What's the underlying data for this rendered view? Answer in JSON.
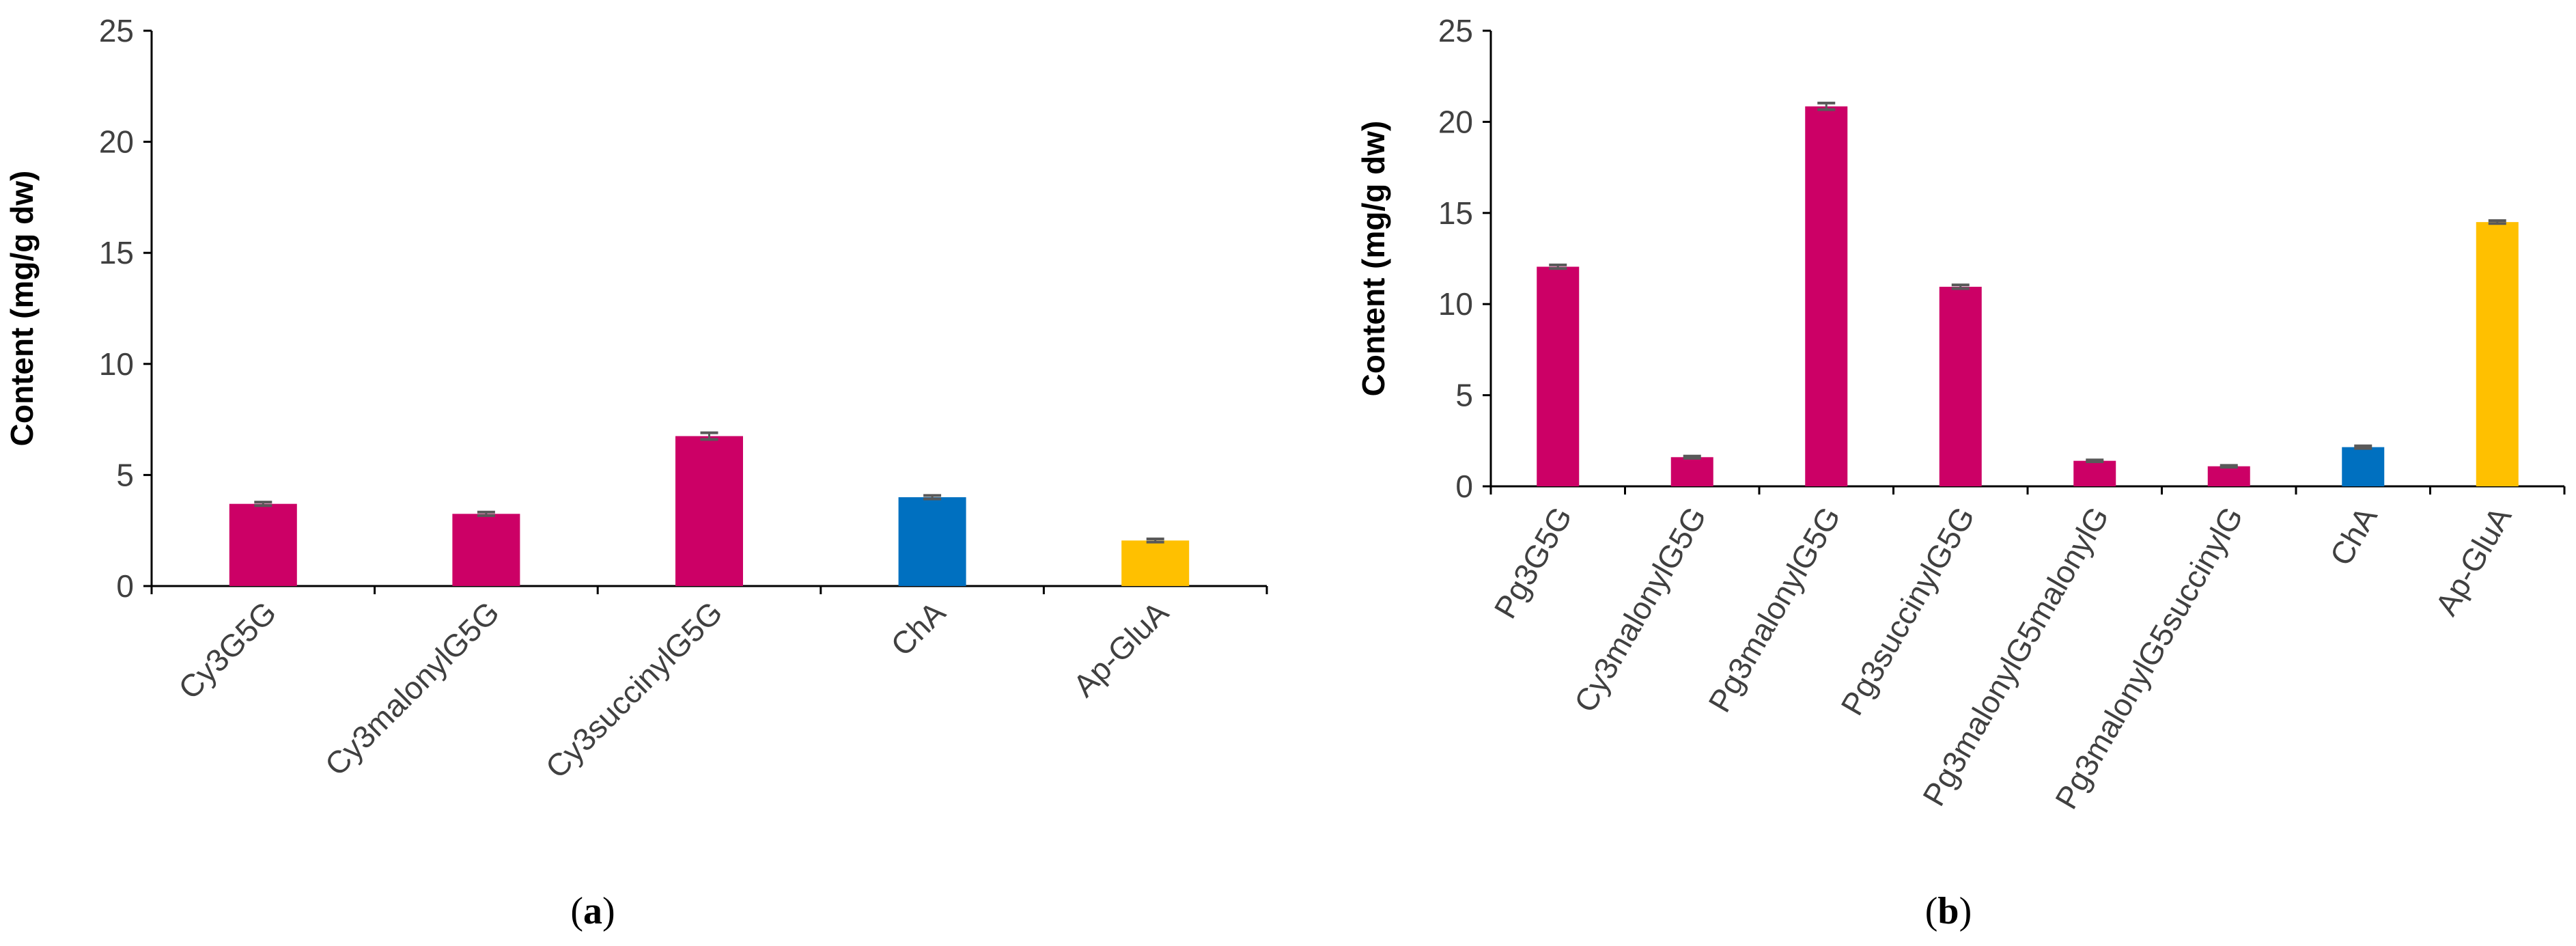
{
  "chart_data": [
    {
      "type": "bar",
      "panel": "a",
      "ylabel": "Content (mg/g dw)",
      "ylim": [
        0,
        25
      ],
      "yticks": [
        0,
        5,
        10,
        15,
        20,
        25
      ],
      "categories": [
        "Cy3G5G",
        "Cy3malonylG5G",
        "Cy3succinylG5G",
        "ChA",
        "Ap-GluA"
      ],
      "values": [
        3.7,
        3.25,
        6.75,
        4.0,
        2.05
      ],
      "errors": [
        0.08,
        0.08,
        0.15,
        0.08,
        0.07
      ],
      "colors": [
        "#cc0066",
        "#cc0066",
        "#cc0066",
        "#0070c0",
        "#ffc000"
      ],
      "grid": false
    },
    {
      "type": "bar",
      "panel": "b",
      "ylabel": "Content (mg/g dw)",
      "ylim": [
        0,
        25
      ],
      "yticks": [
        0,
        5,
        10,
        15,
        20,
        25
      ],
      "categories": [
        "Pg3G5G",
        "Cy3malonylG5G",
        "Pg3malonylG5G",
        "Pg3succinylG5G",
        "Pg3malonylG5malonylG",
        "Pg3malonylG5succinylG",
        "ChA",
        "Ap-GluA"
      ],
      "values": [
        12.05,
        1.6,
        20.85,
        10.95,
        1.4,
        1.1,
        2.15,
        14.5
      ],
      "errors": [
        0.1,
        0.06,
        0.18,
        0.1,
        0.05,
        0.05,
        0.07,
        0.08
      ],
      "colors": [
        "#cc0066",
        "#cc0066",
        "#cc0066",
        "#cc0066",
        "#cc0066",
        "#cc0066",
        "#0070c0",
        "#ffc000"
      ],
      "grid": false
    }
  ],
  "labels": {
    "panel_a_open": "(",
    "panel_a_letter": "a",
    "panel_a_close": ")",
    "panel_b_open": "(",
    "panel_b_letter": "b",
    "panel_b_close": ")"
  }
}
